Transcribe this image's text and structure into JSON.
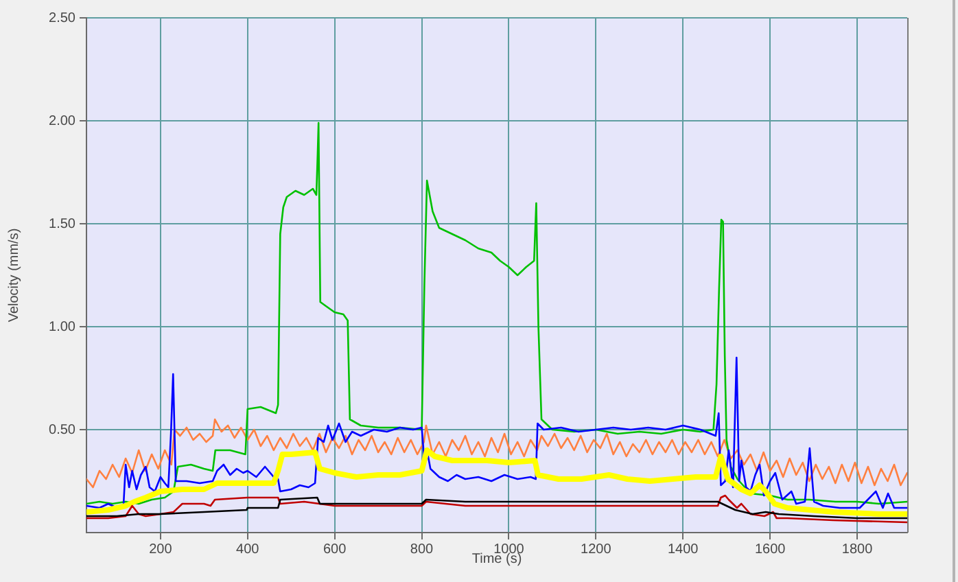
{
  "chart_data": {
    "type": "line",
    "xlabel": "Time (s)",
    "ylabel": "Velocity (mm/s)",
    "xlim": [
      30,
      1915
    ],
    "xticks": [
      200,
      400,
      600,
      800,
      1000,
      1200,
      1400,
      1600,
      1800
    ],
    "ylim": [
      0,
      2.5
    ],
    "yticks": [
      {
        "value": 0.5,
        "label": "0.50"
      },
      {
        "value": 1,
        "label": "1.00"
      },
      {
        "value": 1.5,
        "label": "1.50"
      },
      {
        "value": 2,
        "label": "2.00"
      },
      {
        "value": 2.5,
        "label": "2.50"
      }
    ],
    "grid": true,
    "series": [
      {
        "color": "#ff8040",
        "x": [
          30,
          45,
          60,
          75,
          90,
          105,
          120,
          135,
          150,
          165,
          180,
          195,
          210,
          225,
          232,
          245,
          260,
          275,
          290,
          305,
          320,
          325,
          340,
          355,
          370,
          385,
          400,
          415,
          430,
          445,
          460,
          475,
          490,
          505,
          520,
          535,
          550,
          565,
          580,
          595,
          610,
          625,
          640,
          655,
          670,
          685,
          700,
          715,
          730,
          745,
          760,
          775,
          790,
          805,
          810,
          825,
          840,
          855,
          870,
          885,
          900,
          915,
          930,
          945,
          960,
          975,
          990,
          1005,
          1020,
          1035,
          1050,
          1065,
          1075,
          1090,
          1105,
          1120,
          1135,
          1150,
          1165,
          1180,
          1195,
          1210,
          1225,
          1240,
          1255,
          1270,
          1285,
          1300,
          1315,
          1330,
          1345,
          1360,
          1375,
          1390,
          1405,
          1420,
          1435,
          1450,
          1465,
          1480,
          1495,
          1510,
          1525,
          1540,
          1555,
          1570,
          1585,
          1600,
          1615,
          1630,
          1645,
          1660,
          1675,
          1690,
          1705,
          1720,
          1735,
          1750,
          1765,
          1780,
          1795,
          1810,
          1825,
          1840,
          1855,
          1870,
          1885,
          1900,
          1915
        ],
        "values": [
          0.26,
          0.22,
          0.3,
          0.26,
          0.33,
          0.27,
          0.36,
          0.29,
          0.4,
          0.3,
          0.38,
          0.31,
          0.4,
          0.33,
          0.5,
          0.47,
          0.51,
          0.45,
          0.48,
          0.44,
          0.47,
          0.55,
          0.49,
          0.52,
          0.46,
          0.51,
          0.45,
          0.5,
          0.42,
          0.47,
          0.4,
          0.46,
          0.41,
          0.48,
          0.42,
          0.46,
          0.4,
          0.48,
          0.39,
          0.46,
          0.41,
          0.47,
          0.38,
          0.45,
          0.4,
          0.47,
          0.39,
          0.44,
          0.38,
          0.46,
          0.39,
          0.45,
          0.38,
          0.44,
          0.52,
          0.38,
          0.44,
          0.37,
          0.45,
          0.4,
          0.47,
          0.38,
          0.44,
          0.37,
          0.46,
          0.39,
          0.48,
          0.38,
          0.44,
          0.37,
          0.45,
          0.4,
          0.47,
          0.42,
          0.48,
          0.41,
          0.46,
          0.4,
          0.47,
          0.39,
          0.45,
          0.41,
          0.48,
          0.38,
          0.44,
          0.37,
          0.43,
          0.39,
          0.45,
          0.38,
          0.44,
          0.39,
          0.45,
          0.38,
          0.44,
          0.39,
          0.45,
          0.38,
          0.44,
          0.37,
          0.45,
          0.36,
          0.4,
          0.33,
          0.38,
          0.3,
          0.39,
          0.3,
          0.35,
          0.27,
          0.36,
          0.28,
          0.34,
          0.25,
          0.33,
          0.26,
          0.32,
          0.24,
          0.33,
          0.25,
          0.34,
          0.24,
          0.32,
          0.23,
          0.31,
          0.25,
          0.33,
          0.23,
          0.29
        ]
      },
      {
        "color": "#00c000",
        "x": [
          30,
          60,
          90,
          120,
          150,
          180,
          210,
          230,
          240,
          270,
          300,
          320,
          326,
          360,
          395,
          400,
          430,
          465,
          470,
          475,
          482,
          490,
          510,
          530,
          550,
          558,
          561,
          563,
          567,
          580,
          600,
          620,
          630,
          635,
          660,
          700,
          750,
          800,
          806,
          812,
          825,
          840,
          870,
          900,
          930,
          960,
          980,
          1000,
          1020,
          1040,
          1058,
          1063,
          1068,
          1075,
          1100,
          1150,
          1200,
          1250,
          1300,
          1350,
          1400,
          1440,
          1470,
          1477,
          1483,
          1488,
          1492,
          1496,
          1500,
          1510,
          1525,
          1555,
          1600,
          1640,
          1690,
          1750,
          1800,
          1850,
          1915
        ],
        "values": [
          0.14,
          0.15,
          0.14,
          0.15,
          0.14,
          0.16,
          0.17,
          0.2,
          0.32,
          0.33,
          0.31,
          0.3,
          0.4,
          0.4,
          0.38,
          0.6,
          0.61,
          0.58,
          0.62,
          1.45,
          1.58,
          1.63,
          1.66,
          1.64,
          1.67,
          1.64,
          1.84,
          1.99,
          1.12,
          1.1,
          1.07,
          1.06,
          1.03,
          0.55,
          0.52,
          0.51,
          0.51,
          0.5,
          1.2,
          1.71,
          1.56,
          1.48,
          1.45,
          1.42,
          1.38,
          1.36,
          1.32,
          1.29,
          1.25,
          1.29,
          1.32,
          1.6,
          1.0,
          0.55,
          0.5,
          0.49,
          0.5,
          0.48,
          0.49,
          0.48,
          0.5,
          0.49,
          0.5,
          0.72,
          1.19,
          1.52,
          1.51,
          0.86,
          0.45,
          0.32,
          0.26,
          0.19,
          0.18,
          0.16,
          0.16,
          0.15,
          0.15,
          0.14,
          0.15
        ]
      },
      {
        "color": "#0000ff",
        "x": [
          30,
          60,
          80,
          100,
          115,
          120,
          128,
          135,
          145,
          155,
          166,
          175,
          187,
          200,
          210,
          218,
          224,
          229,
          235,
          260,
          290,
          320,
          330,
          345,
          360,
          375,
          390,
          400,
          420,
          440,
          460,
          470,
          475,
          500,
          520,
          540,
          555,
          562,
          575,
          585,
          595,
          610,
          625,
          640,
          660,
          690,
          720,
          750,
          780,
          800,
          806,
          812,
          820,
          840,
          860,
          880,
          900,
          930,
          960,
          990,
          1020,
          1050,
          1062,
          1066,
          1080,
          1120,
          1160,
          1200,
          1240,
          1280,
          1320,
          1360,
          1400,
          1440,
          1475,
          1482,
          1487,
          1497,
          1505,
          1515,
          1523,
          1529,
          1534,
          1545,
          1555,
          1566,
          1576,
          1586,
          1600,
          1612,
          1628,
          1649,
          1660,
          1680,
          1691,
          1701,
          1722,
          1760,
          1806,
          1843,
          1859,
          1871,
          1885,
          1915
        ],
        "values": [
          0.13,
          0.12,
          0.14,
          0.12,
          0.13,
          0.33,
          0.22,
          0.3,
          0.21,
          0.28,
          0.32,
          0.22,
          0.2,
          0.27,
          0.24,
          0.22,
          0.48,
          0.77,
          0.25,
          0.25,
          0.24,
          0.25,
          0.3,
          0.33,
          0.28,
          0.31,
          0.29,
          0.3,
          0.27,
          0.32,
          0.27,
          0.26,
          0.2,
          0.21,
          0.23,
          0.22,
          0.24,
          0.46,
          0.44,
          0.52,
          0.45,
          0.53,
          0.44,
          0.49,
          0.47,
          0.5,
          0.49,
          0.51,
          0.5,
          0.51,
          0.35,
          0.4,
          0.31,
          0.27,
          0.25,
          0.28,
          0.26,
          0.27,
          0.25,
          0.28,
          0.26,
          0.27,
          0.26,
          0.53,
          0.5,
          0.51,
          0.49,
          0.5,
          0.51,
          0.5,
          0.51,
          0.5,
          0.52,
          0.5,
          0.47,
          0.58,
          0.23,
          0.25,
          0.4,
          0.22,
          0.85,
          0.25,
          0.35,
          0.22,
          0.2,
          0.28,
          0.33,
          0.18,
          0.25,
          0.29,
          0.16,
          0.2,
          0.14,
          0.15,
          0.41,
          0.15,
          0.13,
          0.12,
          0.12,
          0.2,
          0.12,
          0.19,
          0.12,
          0.12
        ]
      },
      {
        "color": "#ffff00",
        "x": [
          30,
          80,
          120,
          140,
          166,
          200,
          250,
          300,
          330,
          398,
          460,
          470,
          480,
          500,
          555,
          566,
          600,
          650,
          700,
          750,
          800,
          812,
          830,
          870,
          950,
          1000,
          1060,
          1067,
          1114,
          1167,
          1230,
          1272,
          1324,
          1377,
          1429,
          1475,
          1487,
          1503,
          1534,
          1555,
          1576,
          1590,
          1610,
          1640,
          1692,
          1745,
          1850,
          1915
        ],
        "values": [
          0.1,
          0.11,
          0.13,
          0.15,
          0.17,
          0.2,
          0.21,
          0.21,
          0.24,
          0.24,
          0.24,
          0.3,
          0.38,
          0.38,
          0.39,
          0.31,
          0.29,
          0.27,
          0.28,
          0.28,
          0.3,
          0.4,
          0.37,
          0.35,
          0.35,
          0.34,
          0.35,
          0.28,
          0.26,
          0.26,
          0.28,
          0.26,
          0.25,
          0.26,
          0.27,
          0.27,
          0.37,
          0.26,
          0.21,
          0.19,
          0.23,
          0.2,
          0.14,
          0.12,
          0.11,
          0.1,
          0.09,
          0.09
        ]
      },
      {
        "color": "#c00000",
        "x": [
          30,
          80,
          120,
          135,
          150,
          166,
          200,
          230,
          250,
          300,
          315,
          325,
          400,
          470,
          475,
          530,
          600,
          700,
          800,
          810,
          900,
          1000,
          1100,
          1200,
          1300,
          1400,
          1480,
          1487,
          1497,
          1505,
          1524,
          1534,
          1555,
          1587,
          1607,
          1615,
          1640,
          1745,
          1915
        ],
        "values": [
          0.07,
          0.07,
          0.08,
          0.13,
          0.09,
          0.08,
          0.09,
          0.1,
          0.14,
          0.14,
          0.13,
          0.16,
          0.17,
          0.17,
          0.14,
          0.15,
          0.13,
          0.13,
          0.13,
          0.15,
          0.13,
          0.13,
          0.13,
          0.13,
          0.13,
          0.13,
          0.13,
          0.17,
          0.18,
          0.16,
          0.12,
          0.14,
          0.09,
          0.08,
          0.1,
          0.07,
          0.07,
          0.06,
          0.05
        ]
      },
      {
        "color": "#000000",
        "x": [
          30,
          100,
          150,
          200,
          300,
          398,
          400,
          470,
          475,
          560,
          566,
          700,
          800,
          810,
          900,
          1000,
          1200,
          1400,
          1480,
          1500,
          1520,
          1560,
          1590,
          1620,
          1700,
          1800,
          1915
        ],
        "values": [
          0.08,
          0.08,
          0.09,
          0.09,
          0.1,
          0.11,
          0.12,
          0.12,
          0.16,
          0.17,
          0.14,
          0.14,
          0.14,
          0.16,
          0.15,
          0.15,
          0.15,
          0.15,
          0.15,
          0.13,
          0.11,
          0.09,
          0.1,
          0.09,
          0.08,
          0.07,
          0.07
        ]
      }
    ]
  }
}
